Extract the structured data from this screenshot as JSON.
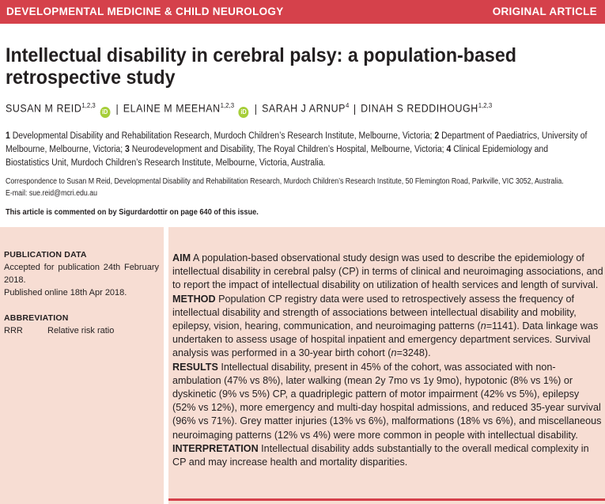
{
  "header": {
    "journal": "DEVELOPMENTAL MEDICINE & CHILD NEUROLOGY",
    "article_type": "ORIGINAL ARTICLE",
    "bar_color": "#d5414b"
  },
  "title": "Intellectual disability in cerebral palsy: a population-based retrospective study",
  "authors": [
    {
      "name": "SUSAN M REID",
      "sup": "1,2,3",
      "orcid": true
    },
    {
      "name": "ELAINE M MEEHAN",
      "sup": "1,2,3",
      "orcid": true
    },
    {
      "name": "SARAH J ARNUP",
      "sup": "4",
      "orcid": false
    },
    {
      "name": "DINAH S REDDIHOUGH",
      "sup": "1,2,3",
      "orcid": false
    }
  ],
  "orcid_label": "iD",
  "affiliations": [
    {
      "num": "1",
      "text": " Developmental Disability and Rehabilitation Research, Murdoch Children’s Research Institute, Melbourne, Victoria; "
    },
    {
      "num": "2",
      "text": " Department of Paediatrics, University of Melbourne, Melbourne, Victoria; "
    },
    {
      "num": "3",
      "text": " Neurodevelopment and Disability, The Royal Children’s Hospital, Melbourne, Victoria; "
    },
    {
      "num": "4",
      "text": " Clinical Epidemiology and Biostatistics Unit, Murdoch Children’s Research Institute, Melbourne, Victoria, Australia."
    }
  ],
  "correspondence": "Correspondence to Susan M Reid, Developmental Disability and Rehabilitation Research, Murdoch Children’s Research Institute, 50 Flemington Road, Parkville, VIC 3052, Australia.",
  "email": "E-mail: sue.reid@mcri.edu.au",
  "comment_note": "This article is commented on by Sigurdardottir on page 640 of this issue.",
  "publication": {
    "heading": "PUBLICATION DATA",
    "accepted": "Accepted for publication 24th February 2018.",
    "online": "Published online 18th Apr 2018.",
    "abbr_heading": "ABBREVIATION",
    "abbreviations": [
      {
        "abbr": "RRR",
        "meaning": "Relative risk ratio"
      }
    ]
  },
  "abstract": {
    "aim_label": "AIM",
    "aim": " A population-based observational study design was used to describe the epidemiology of intellectual disability in cerebral palsy (CP) in terms of clinical and neuroimaging associations, and to report the impact of intellectual disability on utilization of health services and length of survival.",
    "method_label": "METHOD",
    "method_a": " Population CP registry data were used to retrospectively assess the frequency of intellectual disability and strength of associations between intellectual disability and mobility, epilepsy, vision, hearing, communication, and neuroimaging patterns (",
    "method_n1": "n",
    "method_b": "=1141). Data linkage was undertaken to assess usage of hospital inpatient and emergency department services. Survival analysis was performed in a 30-year birth cohort (",
    "method_n2": "n",
    "method_c": "=3248).",
    "results_label": "RESULTS",
    "results": " Intellectual disability, present in 45% of the cohort, was associated with non-ambulation (47% vs 8%), later walking (mean 2y 7mo vs 1y 9mo), hypotonic (8% vs 1%) or dyskinetic (9% vs 5%) CP, a quadriplegic pattern of motor impairment (42% vs 5%), epilepsy (52% vs 12%), more emergency and multi-day hospital admissions, and reduced 35-year survival (96% vs 71%). Grey matter injuries (13% vs 6%), malformations (18% vs 6%), and miscellaneous neuroimaging patterns (12% vs 4%) were more common in people with intellectual disability.",
    "interp_label": "INTERPRETATION",
    "interp": " Intellectual disability adds substantially to the overall medical complexity in CP and may increase health and mortality disparities."
  },
  "colors": {
    "panel": "#f7ddd3",
    "accent": "#d5414b",
    "orcid": "#a6ce39"
  }
}
